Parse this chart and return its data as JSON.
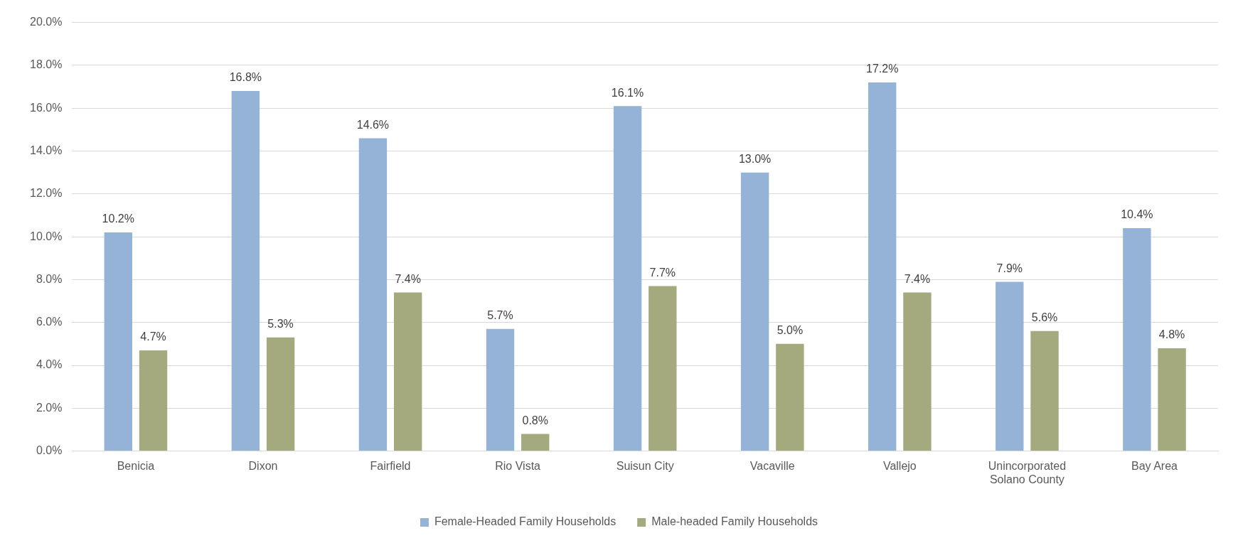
{
  "chart_data": {
    "type": "bar",
    "categories": [
      "Benicia",
      "Dixon",
      "Fairfield",
      "Rio Vista",
      "Suisun City",
      "Vacaville",
      "Vallejo",
      "Unincorporated Solano County",
      "Bay Area"
    ],
    "series": [
      {
        "name": "Female-Headed Family Households",
        "color": "#95b3d7",
        "values": [
          10.2,
          16.8,
          14.6,
          5.7,
          16.1,
          13.0,
          17.2,
          7.9,
          10.4
        ],
        "value_labels": [
          "10.2%",
          "16.8%",
          "14.6%",
          "5.7%",
          "16.1%",
          "13.0%",
          "17.2%",
          "7.9%",
          "10.4%"
        ]
      },
      {
        "name": "Male-headed Family Households",
        "color": "#a4aa7e",
        "values": [
          4.7,
          5.3,
          7.4,
          0.8,
          7.7,
          5.0,
          7.4,
          5.6,
          4.8
        ],
        "value_labels": [
          "4.7%",
          "5.3%",
          "7.4%",
          "0.8%",
          "7.7%",
          "5.0%",
          "7.4%",
          "5.6%",
          "4.8%"
        ]
      }
    ],
    "ylim": [
      0,
      20
    ],
    "yticks": [
      {
        "value": 0,
        "label": "0.0%"
      },
      {
        "value": 2,
        "label": "2.0%"
      },
      {
        "value": 4,
        "label": "4.0%"
      },
      {
        "value": 6,
        "label": "6.0%"
      },
      {
        "value": 8,
        "label": "8.0%"
      },
      {
        "value": 10,
        "label": "10.0%"
      },
      {
        "value": 12,
        "label": "12.0%"
      },
      {
        "value": 14,
        "label": "14.0%"
      },
      {
        "value": 16,
        "label": "16.0%"
      },
      {
        "value": 18,
        "label": "18.0%"
      },
      {
        "value": 20,
        "label": "20.0%"
      }
    ],
    "grid": "y",
    "legend": "bottom"
  }
}
